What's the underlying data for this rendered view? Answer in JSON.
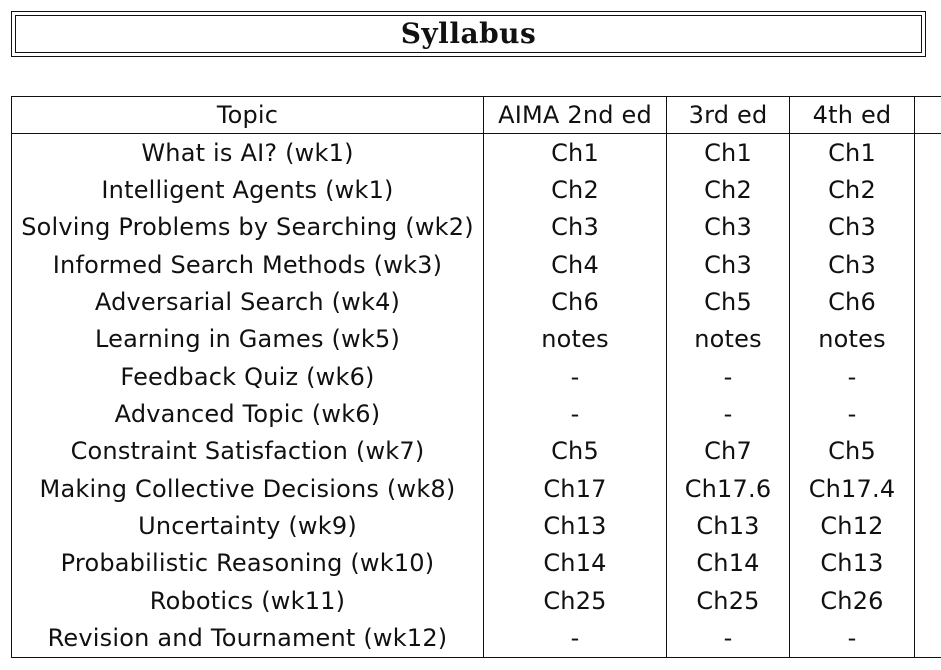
{
  "title": "Syllabus",
  "headers": [
    "Topic",
    "AIMA 2nd ed",
    "3rd ed",
    "4th ed"
  ],
  "rows": [
    {
      "topic": "What is AI? (wk1)",
      "aima2": "Ch1",
      "ed3": "Ch1",
      "ed4": "Ch1"
    },
    {
      "topic": "Intelligent Agents (wk1)",
      "aima2": "Ch2",
      "ed3": "Ch2",
      "ed4": "Ch2"
    },
    {
      "topic": "Solving Problems by Searching (wk2)",
      "aima2": "Ch3",
      "ed3": "Ch3",
      "ed4": "Ch3"
    },
    {
      "topic": "Informed Search Methods (wk3)",
      "aima2": "Ch4",
      "ed3": "Ch3",
      "ed4": "Ch3"
    },
    {
      "topic": "Adversarial Search (wk4)",
      "aima2": "Ch6",
      "ed3": "Ch5",
      "ed4": "Ch6"
    },
    {
      "topic": "Learning in Games (wk5)",
      "aima2": "notes",
      "ed3": "notes",
      "ed4": "notes"
    },
    {
      "topic": "Feedback Quiz (wk6)",
      "aima2": "-",
      "ed3": "-",
      "ed4": "-"
    },
    {
      "topic": "Advanced Topic (wk6)",
      "aima2": "-",
      "ed3": "-",
      "ed4": "-"
    },
    {
      "topic": "Constraint Satisfaction (wk7)",
      "aima2": "Ch5",
      "ed3": "Ch7",
      "ed4": "Ch5"
    },
    {
      "topic": "Making Collective Decisions (wk8)",
      "aima2": "Ch17",
      "ed3": "Ch17.6",
      "ed4": "Ch17.4"
    },
    {
      "topic": "Uncertainty (wk9)",
      "aima2": "Ch13",
      "ed3": "Ch13",
      "ed4": "Ch12"
    },
    {
      "topic": "Probabilistic Reasoning (wk10)",
      "aima2": "Ch14",
      "ed3": "Ch14",
      "ed4": "Ch13"
    },
    {
      "topic": "Robotics (wk11)",
      "aima2": "Ch25",
      "ed3": "Ch25",
      "ed4": "Ch26"
    },
    {
      "topic": "Revision and Tournament (wk12)",
      "aima2": "-",
      "ed3": "-",
      "ed4": "-"
    }
  ]
}
